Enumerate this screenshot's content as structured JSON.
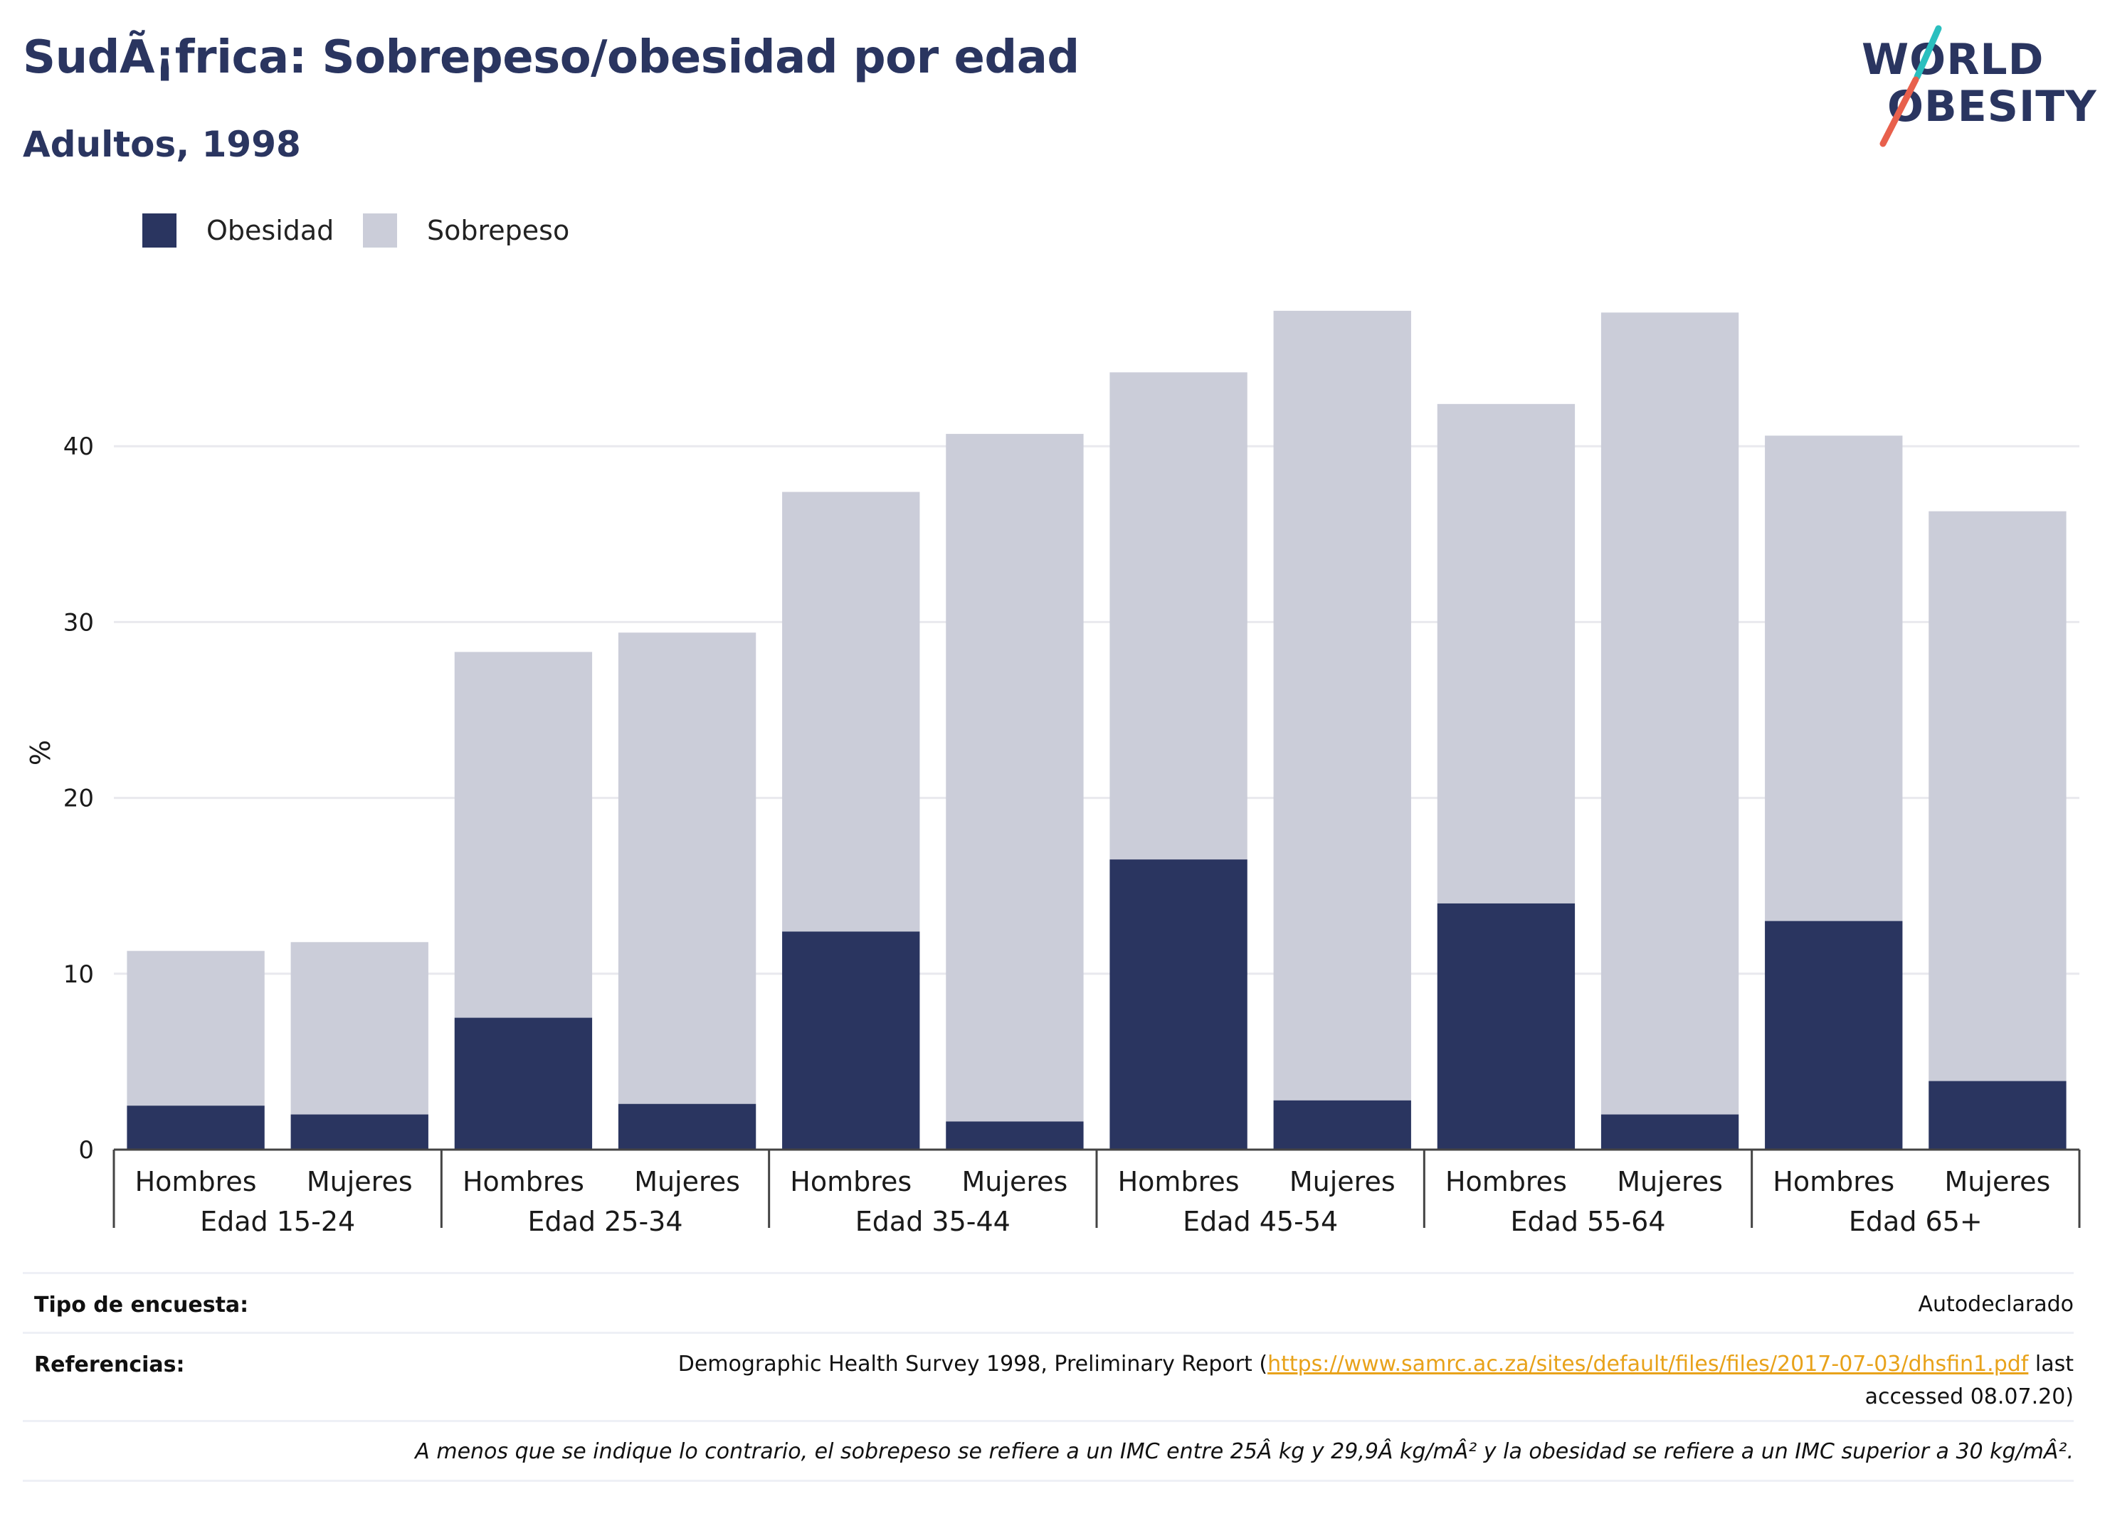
{
  "header": {
    "title": "SudÃ¡frica: Sobrepeso/obesidad por edad",
    "subtitle": "Adultos, 1998"
  },
  "logo": {
    "line1": "WORLD",
    "line2": "OBESITY",
    "colors": {
      "text": "#2a3560",
      "slash_top": "#2bbfbf",
      "slash_bottom": "#e8604c"
    }
  },
  "colors": {
    "obesity": "#2a3560",
    "overweight": "#cbcdd9",
    "grid": "#e9e9ee",
    "axis": "#444444"
  },
  "chart_data": {
    "type": "bar",
    "stacked": true,
    "ylabel": "%",
    "ylim": [
      0,
      50
    ],
    "yticks": [
      0,
      10,
      20,
      30,
      40
    ],
    "grid": true,
    "legend_position": "top-left",
    "groups": [
      "Edad 15-24",
      "Edad 25-34",
      "Edad 35-44",
      "Edad 45-54",
      "Edad 55-64",
      "Edad 65+"
    ],
    "subcategories": [
      "Hombres",
      "Mujeres"
    ],
    "series": [
      {
        "name": "Obesidad",
        "values": [
          2.5,
          2.0,
          7.5,
          2.6,
          12.4,
          1.6,
          16.5,
          2.8,
          14.0,
          2.0,
          13.0,
          3.9
        ]
      },
      {
        "name": "Sobrepeso",
        "values": [
          8.8,
          9.8,
          20.8,
          26.8,
          25.0,
          39.1,
          27.7,
          44.9,
          28.4,
          45.6,
          27.6,
          32.4
        ]
      }
    ]
  },
  "footer": {
    "survey_label": "Tipo de encuesta:",
    "survey_value": "Autodeclarado",
    "refs_label": "Referencias:",
    "refs_text_before": "Demographic Health Survey 1998, Preliminary Report (",
    "refs_link": "https://www.samrc.ac.za/sites/default/files/files/2017-07-03/dhsfin1.pdf",
    "refs_text_after": " last",
    "refs_text_line2": "accessed 08.07.20)",
    "note": "A menos que se indique lo contrario, el sobrepeso se refiere a un IMC entre 25Â kg y 29,9Â kg/mÂ² y la obesidad se refiere a un IMC superior a 30 kg/mÂ²."
  }
}
